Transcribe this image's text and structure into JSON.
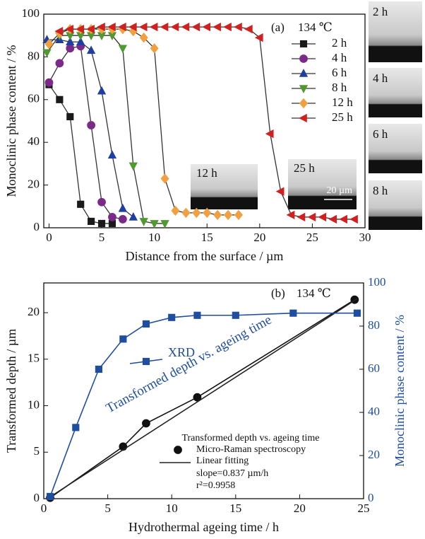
{
  "chart_data": [
    {
      "type": "line",
      "xlabel": "Distance from the surface / µm",
      "ylabel": "Monoclinic phase content / %",
      "xlim": [
        -0.5,
        30
      ],
      "ylim": [
        0,
        100
      ],
      "xticks": [
        0,
        5,
        10,
        15,
        20,
        25,
        30
      ],
      "yticks": [
        0,
        20,
        40,
        60,
        80,
        100
      ],
      "annotations": [
        "(a)",
        "134 ℃"
      ],
      "insets": [
        {
          "label": "12 h"
        },
        {
          "label": "25 h",
          "scale_bar": "20 µm"
        }
      ],
      "series": [
        {
          "name": "2 h",
          "color": "#1a1a1a",
          "marker": "square",
          "x": [
            0,
            1,
            2,
            3,
            4,
            5,
            6
          ],
          "values": [
            67,
            60,
            52,
            11,
            3,
            2,
            2
          ]
        },
        {
          "name": "4 h",
          "color": "#7b2a8a",
          "marker": "circle",
          "x": [
            0,
            1,
            2,
            3,
            4,
            5,
            6,
            7
          ],
          "values": [
            68,
            77,
            84,
            85,
            48,
            12,
            5,
            4
          ]
        },
        {
          "name": "6 h",
          "color": "#1f3fa0",
          "marker": "triangle-up",
          "x": [
            -0.2,
            1,
            2,
            3,
            4,
            5,
            6,
            7,
            8
          ],
          "values": [
            88,
            88,
            87,
            87,
            83,
            64,
            34,
            9,
            5
          ]
        },
        {
          "name": "8 h",
          "color": "#4e9a2e",
          "marker": "triangle-down",
          "x": [
            -0.2,
            1,
            2,
            3,
            4,
            5,
            6,
            7,
            8,
            9,
            10,
            11
          ],
          "values": [
            82,
            90,
            90,
            90,
            90,
            90,
            90,
            84,
            29,
            3,
            2,
            2
          ]
        },
        {
          "name": "12 h",
          "color": "#f0a040",
          "marker": "diamond",
          "x": [
            0,
            1,
            2,
            3,
            4,
            5,
            6,
            7,
            8,
            9,
            10,
            11,
            12,
            13,
            14,
            15,
            16,
            17,
            18
          ],
          "values": [
            86,
            91,
            93,
            93,
            93,
            93,
            93,
            93,
            92,
            89,
            84,
            23,
            8,
            7,
            7,
            7,
            6,
            6,
            6
          ]
        },
        {
          "name": "25 h",
          "color": "#d02020",
          "marker": "triangle-left",
          "x": [
            1,
            2,
            3,
            4,
            5,
            6,
            7,
            8,
            9,
            10,
            11,
            12,
            13,
            14,
            15,
            16,
            17,
            18,
            19,
            20,
            21,
            22,
            23,
            24,
            25,
            26,
            27,
            28,
            29
          ],
          "values": [
            92,
            93,
            93,
            93,
            94,
            94,
            94,
            94,
            94,
            94,
            94,
            94,
            94,
            94,
            94,
            94,
            94,
            94,
            93,
            89,
            44,
            17,
            6,
            5,
            5,
            5,
            4,
            4,
            4
          ]
        }
      ]
    },
    {
      "type": "line",
      "xlabel": "Hydrothermal ageing time / h",
      "ylabel": "Transformed depth / µm",
      "y2label": "Monoclinic phase content / %",
      "xlim": [
        0,
        25
      ],
      "ylim": [
        0,
        23.2
      ],
      "y2lim": [
        0,
        100
      ],
      "xticks": [
        0,
        5,
        10,
        15,
        20,
        25
      ],
      "yticks": [
        0,
        5,
        10,
        15,
        20
      ],
      "y2ticks": [
        0,
        20,
        40,
        60,
        80,
        100
      ],
      "annotations": [
        "(b)",
        "134 ℃",
        "Transformed depth vs. ageing time"
      ],
      "legend_title": "Transformed depth vs. ageing time",
      "fit_notes": [
        "slope=0.837 µm/h",
        "r²=0.9958"
      ],
      "series": [
        {
          "name": "Micro-Raman spectroscopy",
          "color": "#111111",
          "marker": "circle",
          "x": [
            0.5,
            6.2,
            8,
            12,
            24.3
          ],
          "values": [
            0.1,
            5.6,
            8.1,
            10.9,
            21.4
          ]
        },
        {
          "name": "Linear fitting",
          "color": "#222222",
          "x": [
            0.5,
            24.5
          ],
          "values": [
            0.2,
            21.5
          ]
        },
        {
          "name": "XRD",
          "color": "#1f4ea0",
          "marker": "square",
          "axis": "y2",
          "x": [
            0.5,
            2.5,
            4.3,
            6.2,
            8,
            10,
            12,
            15,
            19.5,
            24.5
          ],
          "values": [
            1,
            33,
            60,
            74,
            81,
            84,
            85,
            85,
            86,
            86
          ]
        }
      ]
    }
  ],
  "side_images": [
    {
      "label": "2 h"
    },
    {
      "label": "4 h"
    },
    {
      "label": "6 h"
    },
    {
      "label": "8 h"
    }
  ]
}
